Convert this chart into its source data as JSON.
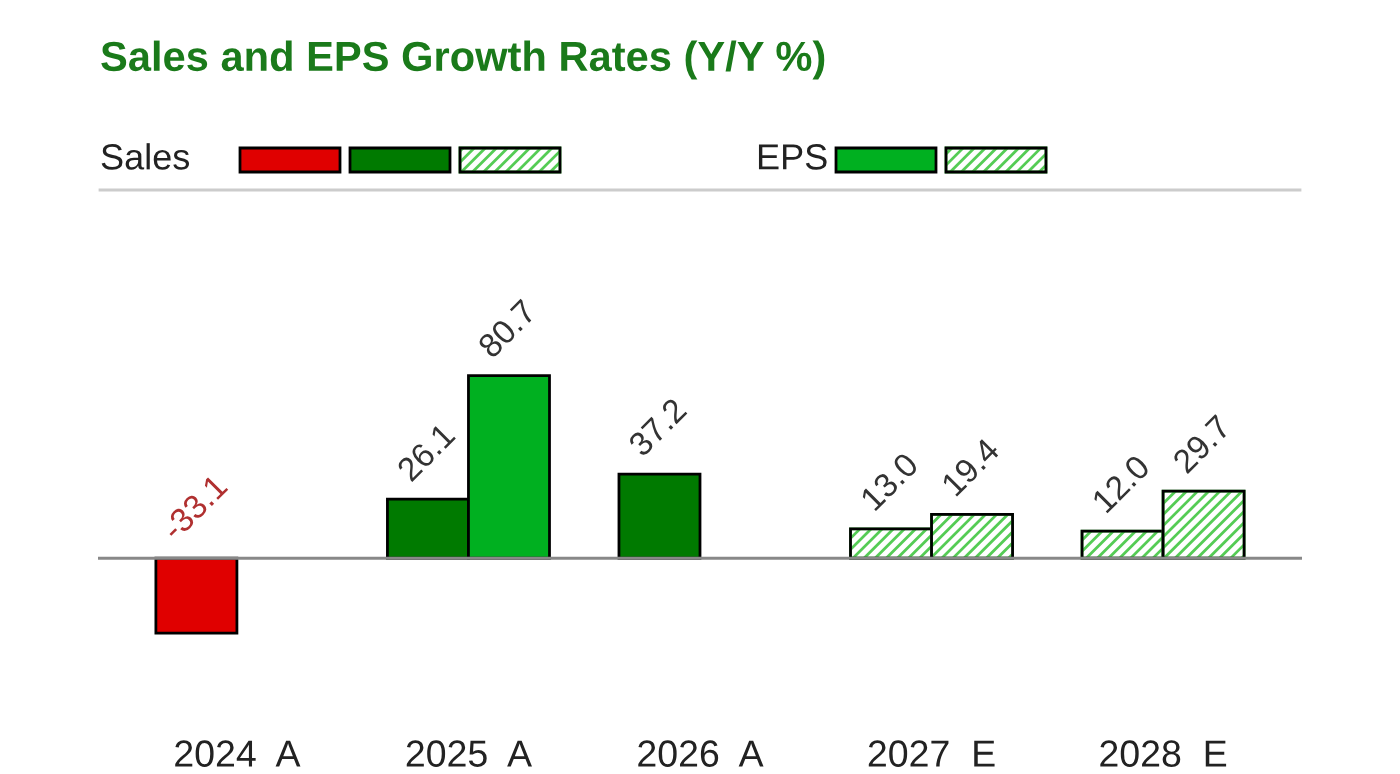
{
  "chart_data": {
    "type": "bar",
    "title": "Sales and EPS Growth Rates (Y/Y %)",
    "categories": [
      "2024  A",
      "2025  A",
      "2026  A",
      "2027  E",
      "2028  E"
    ],
    "series": [
      {
        "name": "Sales",
        "values": [
          -33.1,
          26.1,
          37.2,
          13.0,
          12.0
        ],
        "colors": [
          "#e00000",
          "#007a00",
          "#007a00",
          "#55cc55",
          "#55cc55"
        ],
        "value_labels": [
          "-33.1",
          "26.1",
          "37.2",
          "13.0",
          "12.0"
        ]
      },
      {
        "name": "EPS",
        "values": [
          null,
          80.7,
          null,
          19.4,
          29.7
        ],
        "colors": [
          null,
          "#00b020",
          null,
          "#55cc55",
          "#55cc55"
        ],
        "value_labels": [
          null,
          "80.7",
          null,
          "19.4",
          "29.7"
        ]
      }
    ],
    "legend": "top left",
    "grid": false
  }
}
